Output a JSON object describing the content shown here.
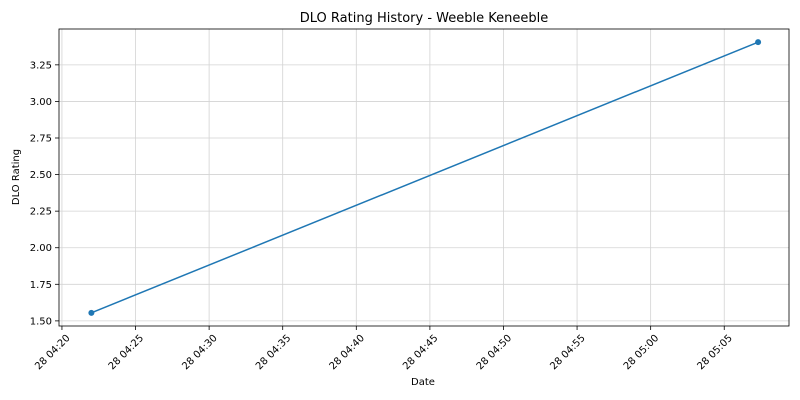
{
  "chart_data": {
    "type": "line",
    "title": "DLO Rating History - Weeble Keneeble",
    "xlabel": "Date",
    "ylabel": "DLO Rating",
    "grid": true,
    "x_ticks": [
      "28 04:20",
      "28 04:25",
      "28 04:30",
      "28 04:35",
      "28 04:40",
      "28 04:45",
      "28 04:50",
      "28 04:55",
      "28 05:00",
      "28 05:05"
    ],
    "y_ticks": [
      "1.50",
      "1.75",
      "2.00",
      "2.25",
      "2.50",
      "2.75",
      "3.00",
      "3.25"
    ],
    "xlim": [
      "28 04:19.8",
      "28 05:09.4"
    ],
    "ylim": [
      1.465,
      3.495
    ],
    "series": [
      {
        "color": "#1f77b4",
        "points": [
          {
            "x": "28 04:22.0",
            "y": 1.555
          },
          {
            "x": "28 05:07.3",
            "y": 3.405
          }
        ]
      }
    ]
  }
}
